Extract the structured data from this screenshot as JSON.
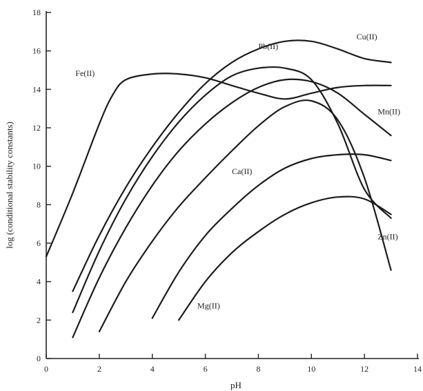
{
  "chart_data": {
    "type": "line",
    "title": "",
    "xlabel": "pH",
    "ylabel": "log (conditional stability constants)",
    "xlim": [
      0,
      14
    ],
    "ylim": [
      0,
      18
    ],
    "x_ticks": [
      0,
      2,
      4,
      6,
      8,
      10,
      12,
      14
    ],
    "y_ticks": [
      0,
      2,
      4,
      6,
      8,
      10,
      12,
      14,
      16,
      18
    ],
    "grid": false,
    "legend": "none",
    "series": [
      {
        "name": "Fe(II)",
        "x": [
          0,
          1,
          2,
          2.5,
          3,
          4,
          5,
          6,
          7,
          8,
          9,
          10,
          11,
          12,
          13
        ],
        "y": [
          5.3,
          8.6,
          12.2,
          13.7,
          14.5,
          14.8,
          14.8,
          14.6,
          14.2,
          13.8,
          13.5,
          13.8,
          14.1,
          14.2,
          14.2
        ]
      },
      {
        "name": "Cu(II)",
        "x": [
          1,
          2,
          3,
          4,
          5,
          6,
          7,
          8,
          9,
          10,
          11,
          12,
          13
        ],
        "y": [
          3.5,
          6.4,
          8.9,
          11.0,
          12.8,
          14.3,
          15.4,
          16.1,
          16.5,
          16.5,
          16.1,
          15.6,
          15.4
        ]
      },
      {
        "name": "Pb(II)",
        "x": [
          1,
          2,
          3,
          4,
          5,
          6,
          7,
          8,
          9,
          10,
          11,
          12,
          13
        ],
        "y": [
          2.4,
          5.6,
          8.3,
          10.5,
          12.3,
          13.7,
          14.7,
          15.1,
          15.1,
          14.5,
          12.2,
          8.8,
          7.3
        ]
      },
      {
        "name": "Mn(II)",
        "x": [
          1,
          2,
          3,
          4,
          5,
          6,
          7,
          8,
          9,
          10,
          11,
          12,
          13
        ],
        "y": [
          1.1,
          4.2,
          6.8,
          9.0,
          10.8,
          12.2,
          13.3,
          14.1,
          14.5,
          14.4,
          13.8,
          12.7,
          11.6
        ]
      },
      {
        "name": "Zn(II)",
        "x": [
          2,
          3,
          4,
          5,
          6,
          7,
          8,
          9,
          10,
          11,
          12,
          13
        ],
        "y": [
          1.4,
          4.0,
          6.1,
          7.9,
          9.4,
          10.8,
          12.1,
          13.1,
          13.4,
          12.4,
          9.4,
          4.6
        ]
      },
      {
        "name": "Ca(II)",
        "x": [
          4,
          5,
          6,
          7,
          8,
          9,
          10,
          11,
          12,
          13
        ],
        "y": [
          2.1,
          4.5,
          6.4,
          7.8,
          9.0,
          9.9,
          10.4,
          10.6,
          10.6,
          10.3
        ]
      },
      {
        "name": "Mg(II)",
        "x": [
          5,
          6,
          7,
          8,
          9,
          10,
          11,
          12,
          13
        ],
        "y": [
          2.0,
          4.0,
          5.5,
          6.6,
          7.5,
          8.1,
          8.4,
          8.3,
          7.5
        ]
      }
    ]
  }
}
